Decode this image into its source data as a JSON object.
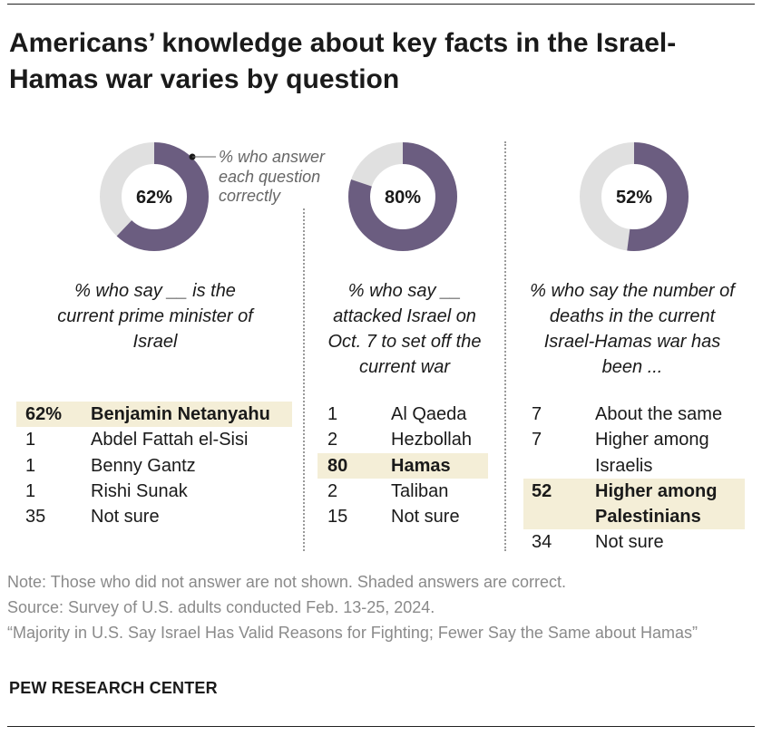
{
  "title": "Americans’ knowledge about key facts in the Israel-Hamas war varies by question",
  "callout": "% who answer each question correctly",
  "colors": {
    "correct": "#6b5d80",
    "other": "#e0e0e0",
    "highlight": "#f4eed7"
  },
  "chart_data": [
    {
      "type": "donut",
      "value": 62,
      "center_label": "62%",
      "question": "% who say __ is the current prime minister of Israel",
      "answers": [
        {
          "pct": "62%",
          "label": "Benjamin Netanyahu",
          "correct": true
        },
        {
          "pct": "1",
          "label": "Abdel Fattah el-Sisi",
          "correct": false
        },
        {
          "pct": "1",
          "label": "Benny Gantz",
          "correct": false
        },
        {
          "pct": "1",
          "label": "Rishi Sunak",
          "correct": false
        },
        {
          "pct": "35",
          "label": "Not sure",
          "correct": false
        }
      ]
    },
    {
      "type": "donut",
      "value": 80,
      "center_label": "80%",
      "question": "% who say __ attacked Israel on Oct. 7 to set off the current war",
      "answers": [
        {
          "pct": "1",
          "label": "Al Qaeda",
          "correct": false
        },
        {
          "pct": "2",
          "label": "Hezbollah",
          "correct": false
        },
        {
          "pct": "80",
          "label": "Hamas",
          "correct": true
        },
        {
          "pct": "2",
          "label": "Taliban",
          "correct": false
        },
        {
          "pct": "15",
          "label": "Not sure",
          "correct": false
        }
      ]
    },
    {
      "type": "donut",
      "value": 52,
      "center_label": "52%",
      "question": "% who say the number of deaths in the current Israel-Hamas war has been ...",
      "answers": [
        {
          "pct": "7",
          "label": "About the same",
          "correct": false
        },
        {
          "pct": "7",
          "label": "Higher among Israelis",
          "correct": false
        },
        {
          "pct": "52",
          "label": "Higher among Palestinians",
          "correct": true
        },
        {
          "pct": "34",
          "label": "Not sure",
          "correct": false
        }
      ]
    }
  ],
  "notes": {
    "note": "Note: Those who did not answer are not shown. Shaded answers are correct.",
    "source": "Source: Survey of U.S. adults conducted Feb. 13-25, 2024.",
    "report": "“Majority in U.S. Say Israel Has Valid Reasons for Fighting; Fewer Say the Same about Hamas”"
  },
  "brand": "PEW RESEARCH CENTER"
}
